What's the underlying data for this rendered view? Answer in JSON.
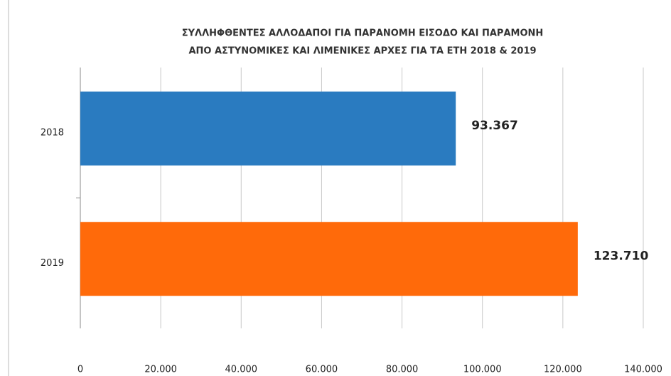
{
  "chart_data": {
    "type": "bar",
    "orientation": "horizontal",
    "title": [
      "ΣΥΛΛΗΦΘΕΝΤΕΣ ΑΛΛΟΔΑΠΟΙ ΓΙΑ ΠΑΡΑΝΟΜΗ ΕΙΣΟΔΟ ΚΑΙ ΠΑΡΑΜΟΝΗ",
      "ΑΠΟ ΑΣΤΥΝΟΜΙΚΕΣ ΚΑΙ ΛΙΜΕΝΙΚΕΣ ΑΡΧΕΣ ΓΙΑ ΤΑ ΕΤΗ 2018 & 2019"
    ],
    "categories": [
      "2018",
      "2019"
    ],
    "values": [
      93367,
      123710
    ],
    "value_labels": [
      "93.367",
      "123.710"
    ],
    "colors": [
      "#2a7bc0",
      "#ff6a0a"
    ],
    "xlim": [
      0,
      140000
    ],
    "xticks": [
      0,
      {
        "value": 20000,
        "label": "20.000"
      },
      {
        "value": 40000,
        "label": "40.000"
      },
      {
        "value": 60000,
        "label": "60.000"
      },
      {
        "value": 80000,
        "label": "80.000"
      },
      {
        "value": 100000,
        "label": "100.000"
      },
      {
        "value": 120000,
        "label": "120.000"
      },
      {
        "value": 140000,
        "label": "140.000"
      }
    ],
    "grid": true
  }
}
